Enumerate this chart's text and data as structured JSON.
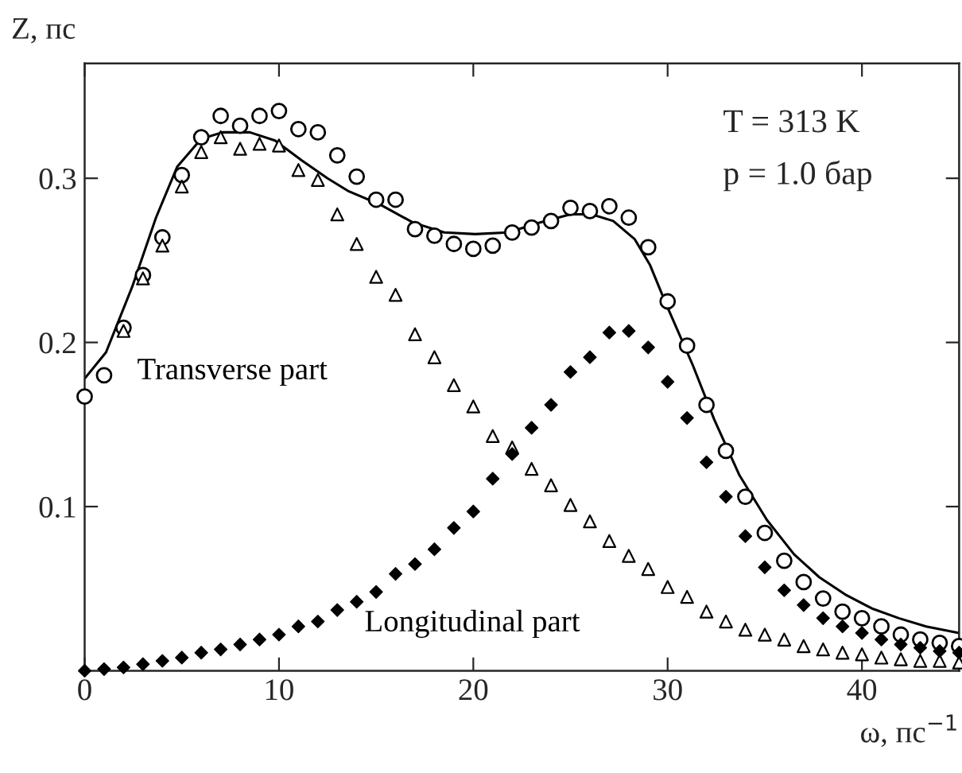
{
  "chart_data": {
    "type": "scatter",
    "xlabel": "ω, пс$^{−1}$",
    "ylabel": "Z, пс",
    "annotations": [
      "T = 313 K",
      "p = 1.0 бар"
    ],
    "xlim": [
      0,
      45
    ],
    "ylim": [
      0,
      0.37
    ],
    "xticks": [
      0,
      10,
      20,
      30,
      40
    ],
    "yticks": [
      0.1,
      0.2,
      0.3
    ],
    "grid": false,
    "legend": false,
    "series": [
      {
        "type": "line",
        "color": "#000000",
        "marker": "none",
        "line_style": "solid",
        "x": [
          0,
          1.1,
          2.45,
          3.67,
          4.76,
          5.99,
          7.1,
          8.5,
          9.8,
          11.16,
          12.5,
          13.6,
          15.2,
          16.9,
          18.5,
          20.1,
          21.8,
          23.4,
          25.0,
          26.1,
          27.2,
          28.3,
          29.1,
          29.9,
          31.3,
          32.4,
          33.7,
          35.1,
          36.5,
          37.8,
          39.2,
          40.5,
          41.9,
          43.3,
          45
        ],
        "values": [
          0.178,
          0.194,
          0.234,
          0.276,
          0.307,
          0.324,
          0.328,
          0.328,
          0.323,
          0.311,
          0.3,
          0.292,
          0.284,
          0.273,
          0.267,
          0.266,
          0.267,
          0.273,
          0.278,
          0.278,
          0.274,
          0.263,
          0.247,
          0.224,
          0.186,
          0.153,
          0.119,
          0.092,
          0.071,
          0.057,
          0.046,
          0.038,
          0.032,
          0.027,
          0.023
        ]
      },
      {
        "color": "#000000",
        "marker": "circle",
        "x": [
          0,
          1,
          2,
          3,
          4,
          5,
          6,
          7,
          8,
          9,
          10,
          11,
          12,
          13,
          14,
          15,
          16,
          17,
          18,
          19,
          20,
          21,
          22,
          23,
          24,
          25,
          26,
          27,
          28,
          29,
          30,
          31,
          32,
          33,
          34,
          35,
          36,
          37,
          38,
          39,
          40,
          41,
          42,
          43,
          44,
          45
        ],
        "values": [
          0.167,
          0.18,
          0.209,
          0.241,
          0.264,
          0.302,
          0.325,
          0.338,
          0.332,
          0.338,
          0.341,
          0.33,
          0.328,
          0.314,
          0.301,
          0.287,
          0.287,
          0.269,
          0.265,
          0.26,
          0.257,
          0.259,
          0.267,
          0.27,
          0.274,
          0.282,
          0.28,
          0.283,
          0.276,
          0.258,
          0.225,
          0.198,
          0.162,
          0.134,
          0.106,
          0.084,
          0.067,
          0.054,
          0.044,
          0.036,
          0.032,
          0.027,
          0.022,
          0.019,
          0.017,
          0.015
        ]
      },
      {
        "name": "Transverse part",
        "color": "#000000",
        "marker": "triangle",
        "x": [
          2,
          3,
          4,
          5,
          6,
          7,
          8,
          9,
          10,
          11,
          12,
          13,
          14,
          15,
          16,
          17,
          18,
          19,
          20,
          21,
          22,
          23,
          24,
          25,
          26,
          27,
          28,
          29,
          30,
          31,
          32,
          33,
          34,
          35,
          36,
          37,
          38,
          39,
          40,
          41,
          42,
          43,
          44,
          45
        ],
        "values": [
          0.207,
          0.239,
          0.259,
          0.295,
          0.316,
          0.325,
          0.318,
          0.321,
          0.32,
          0.305,
          0.299,
          0.278,
          0.26,
          0.24,
          0.229,
          0.205,
          0.191,
          0.174,
          0.161,
          0.143,
          0.136,
          0.123,
          0.113,
          0.101,
          0.091,
          0.079,
          0.07,
          0.062,
          0.051,
          0.045,
          0.036,
          0.03,
          0.025,
          0.022,
          0.019,
          0.015,
          0.013,
          0.011,
          0.01,
          0.008,
          0.007,
          0.006,
          0.006,
          0.005
        ]
      },
      {
        "name": "Longitudinal part",
        "color": "#000000",
        "marker": "diamond",
        "x": [
          0,
          1,
          2,
          3,
          4,
          5,
          6,
          7,
          8,
          9,
          10,
          11,
          12,
          13,
          14,
          15,
          16,
          17,
          18,
          19,
          20,
          21,
          22,
          23,
          24,
          25,
          26,
          27,
          28,
          29,
          30,
          31,
          32,
          33,
          34,
          35,
          36,
          37,
          38,
          39,
          40,
          41,
          42,
          43,
          44,
          45
        ],
        "values": [
          0.0,
          0.001,
          0.002,
          0.004,
          0.006,
          0.008,
          0.011,
          0.013,
          0.016,
          0.019,
          0.022,
          0.027,
          0.03,
          0.037,
          0.042,
          0.048,
          0.059,
          0.065,
          0.074,
          0.087,
          0.097,
          0.117,
          0.132,
          0.148,
          0.162,
          0.182,
          0.191,
          0.206,
          0.207,
          0.197,
          0.176,
          0.154,
          0.127,
          0.106,
          0.082,
          0.063,
          0.049,
          0.04,
          0.032,
          0.027,
          0.023,
          0.019,
          0.016,
          0.014,
          0.012,
          0.011
        ]
      }
    ]
  }
}
